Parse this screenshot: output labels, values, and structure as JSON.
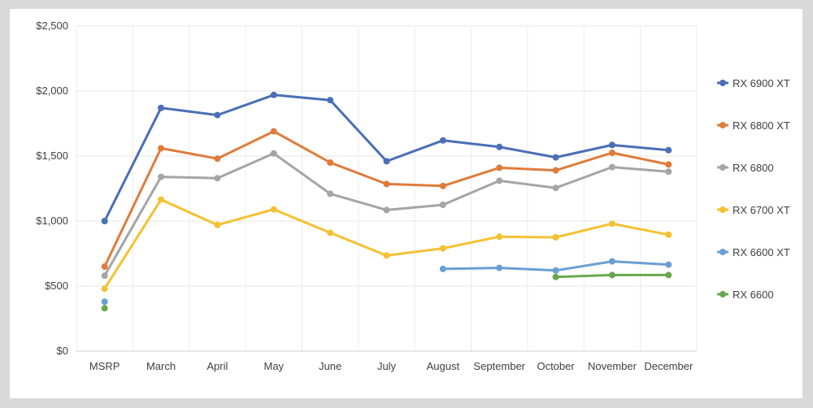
{
  "chart_data": {
    "type": "line",
    "title": "",
    "xlabel": "",
    "ylabel": "",
    "categories": [
      "MSRP",
      "March",
      "April",
      "May",
      "June",
      "July",
      "August",
      "September",
      "October",
      "November",
      "December"
    ],
    "y_ticks": [
      "$0",
      "$500",
      "$1,000",
      "$1,500",
      "$2,000",
      "$2,500"
    ],
    "ylim": [
      0,
      2500
    ],
    "grid": true,
    "legend_position": "right",
    "series": [
      {
        "name": "RX 6900 XT",
        "color": "#4a6fb5",
        "values": [
          1000,
          1870,
          1815,
          1970,
          1930,
          1460,
          1620,
          1570,
          1490,
          1585,
          1545
        ]
      },
      {
        "name": "RX 6800 XT",
        "color": "#e07b3a",
        "values": [
          650,
          1560,
          1480,
          1690,
          1450,
          1285,
          1270,
          1410,
          1390,
          1525,
          1435
        ]
      },
      {
        "name": "RX 6800",
        "color": "#a5a5a5",
        "values": [
          580,
          1340,
          1330,
          1520,
          1210,
          1085,
          1125,
          1310,
          1255,
          1415,
          1380
        ]
      },
      {
        "name": "RX 6700 XT",
        "color": "#f5c132",
        "values": [
          480,
          1165,
          970,
          1090,
          910,
          735,
          790,
          880,
          875,
          980,
          895
        ]
      },
      {
        "name": "RX 6600 XT",
        "color": "#6a9fd4",
        "values": [
          380,
          null,
          null,
          null,
          null,
          null,
          632,
          640,
          620,
          690,
          665
        ]
      },
      {
        "name": "RX 6600",
        "color": "#6aa84f",
        "values": [
          330,
          null,
          null,
          null,
          null,
          null,
          null,
          null,
          570,
          585,
          585
        ]
      }
    ]
  }
}
